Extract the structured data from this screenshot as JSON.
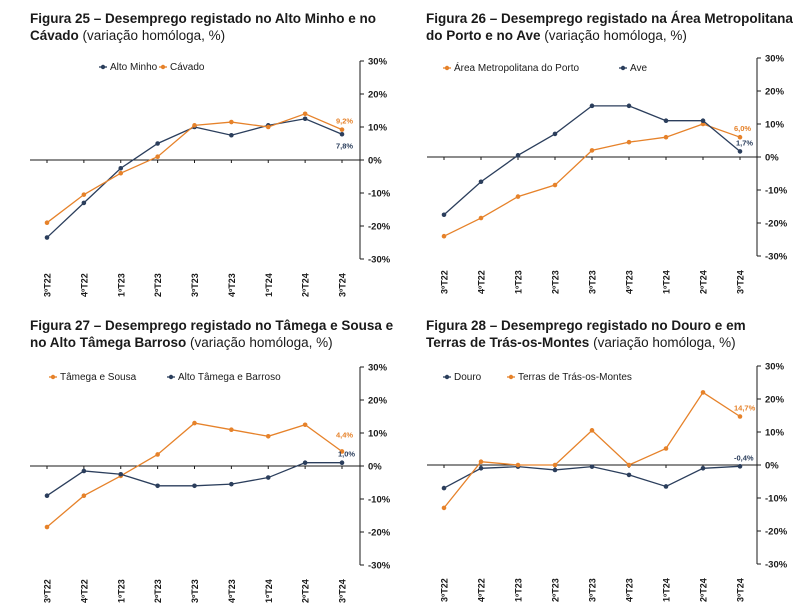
{
  "colors": {
    "orange": "#E6822A",
    "navy": "#2B3E5C",
    "axis": "#1a1a1a"
  },
  "figures": [
    {
      "title_bold": "Figura 25 – Desemprego registado no Alto Minho e no Cávado",
      "title_sub": "(variação homóloga, %)",
      "legend_order": [
        "Alto Minho",
        "Cávado"
      ],
      "chart_data": {
        "type": "line",
        "categories": [
          "3ºT22",
          "4ºT22",
          "1ºT23",
          "2ºT23",
          "3ºT23",
          "4ºT23",
          "1ºT24",
          "2ºT24",
          "3ºT24"
        ],
        "ylim": [
          -30,
          30
        ],
        "yticks": [
          "30%",
          "20%",
          "10%",
          "0%",
          "-10%",
          "-20%",
          "-30%"
        ],
        "series": [
          {
            "name": "Alto Minho",
            "color": "navy",
            "values": [
              -23.5,
              -13.0,
              -2.5,
              5.0,
              10.0,
              7.5,
              10.5,
              12.5,
              7.8
            ],
            "end_label": "7,8%"
          },
          {
            "name": "Cávado",
            "color": "orange",
            "values": [
              -19.0,
              -10.5,
              -4.0,
              1.0,
              10.5,
              11.5,
              10.0,
              14.0,
              9.2
            ],
            "end_label": "9,2%"
          }
        ]
      }
    },
    {
      "title_bold": "Figura 26 – Desemprego registado na Área Metropolitana do Porto e no Ave",
      "title_sub": "(variação homóloga, %)",
      "legend_order": [
        "Área Metropolitana do Porto",
        "Ave"
      ],
      "chart_data": {
        "type": "line",
        "categories": [
          "3ºT22",
          "4ºT22",
          "1ºT23",
          "2ºT23",
          "3ºT23",
          "4ºT23",
          "1ºT24",
          "2ºT24",
          "3ºT24"
        ],
        "ylim": [
          -30,
          30
        ],
        "yticks": [
          "30%",
          "20%",
          "10%",
          "0%",
          "-10%",
          "-20%",
          "-30%"
        ],
        "series": [
          {
            "name": "Área Metropolitana do Porto",
            "color": "orange",
            "values": [
              -24.0,
              -18.5,
              -12.0,
              -8.5,
              2.0,
              4.5,
              6.0,
              10.0,
              6.0
            ],
            "end_label": "6,0%"
          },
          {
            "name": "Ave",
            "color": "navy",
            "values": [
              -17.5,
              -7.5,
              0.5,
              7.0,
              15.5,
              15.5,
              11.0,
              11.0,
              1.7
            ],
            "end_label": "1,7%"
          }
        ]
      }
    },
    {
      "title_bold": "Figura 27 – Desemprego registado no Tâmega e Sousa e no Alto Tâmega Barroso",
      "title_sub": "(variação homóloga, %)",
      "legend_order": [
        "Tâmega e Sousa",
        "Alto Tâmega e Barroso"
      ],
      "chart_data": {
        "type": "line",
        "categories": [
          "3ºT22",
          "4ºT22",
          "1ºT23",
          "2ºT23",
          "3ºT23",
          "4ºT23",
          "1ºT24",
          "2ºT24",
          "3ºT24"
        ],
        "ylim": [
          -30,
          30
        ],
        "yticks": [
          "30%",
          "20%",
          "10%",
          "0%",
          "-10%",
          "-20%",
          "-30%"
        ],
        "series": [
          {
            "name": "Tâmega e Sousa",
            "color": "orange",
            "values": [
              -18.5,
              -9.0,
              -3.0,
              3.5,
              13.0,
              11.0,
              9.0,
              12.5,
              4.4
            ],
            "end_label": "4,4%"
          },
          {
            "name": "Alto Tâmega e Barroso",
            "color": "navy",
            "values": [
              -9.0,
              -1.5,
              -2.5,
              -6.0,
              -6.0,
              -5.5,
              -3.5,
              1.0,
              1.0
            ],
            "end_label": "1,0%"
          }
        ]
      }
    },
    {
      "title_bold": "Figura 28 – Desemprego registado no Douro e em Terras de Trás-os-Montes",
      "title_sub": "(variação homóloga, %)",
      "legend_order": [
        "Douro",
        "Terras de Trás-os-Montes"
      ],
      "chart_data": {
        "type": "line",
        "categories": [
          "3ºT22",
          "4ºT22",
          "1ºT23",
          "2ºT23",
          "3ºT23",
          "4ºT23",
          "1ºT24",
          "2ºT24",
          "3ºT24"
        ],
        "ylim": [
          -30,
          30
        ],
        "yticks": [
          "30%",
          "20%",
          "10%",
          "0%",
          "-10%",
          "-20%",
          "-30%"
        ],
        "series": [
          {
            "name": "Douro",
            "color": "navy",
            "values": [
              -7.0,
              -1.0,
              -0.5,
              -1.5,
              -0.5,
              -3.0,
              -6.5,
              -1.0,
              -0.4
            ],
            "end_label": "-0,4%"
          },
          {
            "name": "Terras de Trás-os-Montes",
            "color": "orange",
            "values": [
              -13.0,
              1.0,
              0.0,
              0.0,
              10.5,
              0.0,
              5.0,
              22.0,
              14.7
            ],
            "end_label": "14,7%"
          }
        ]
      }
    }
  ]
}
